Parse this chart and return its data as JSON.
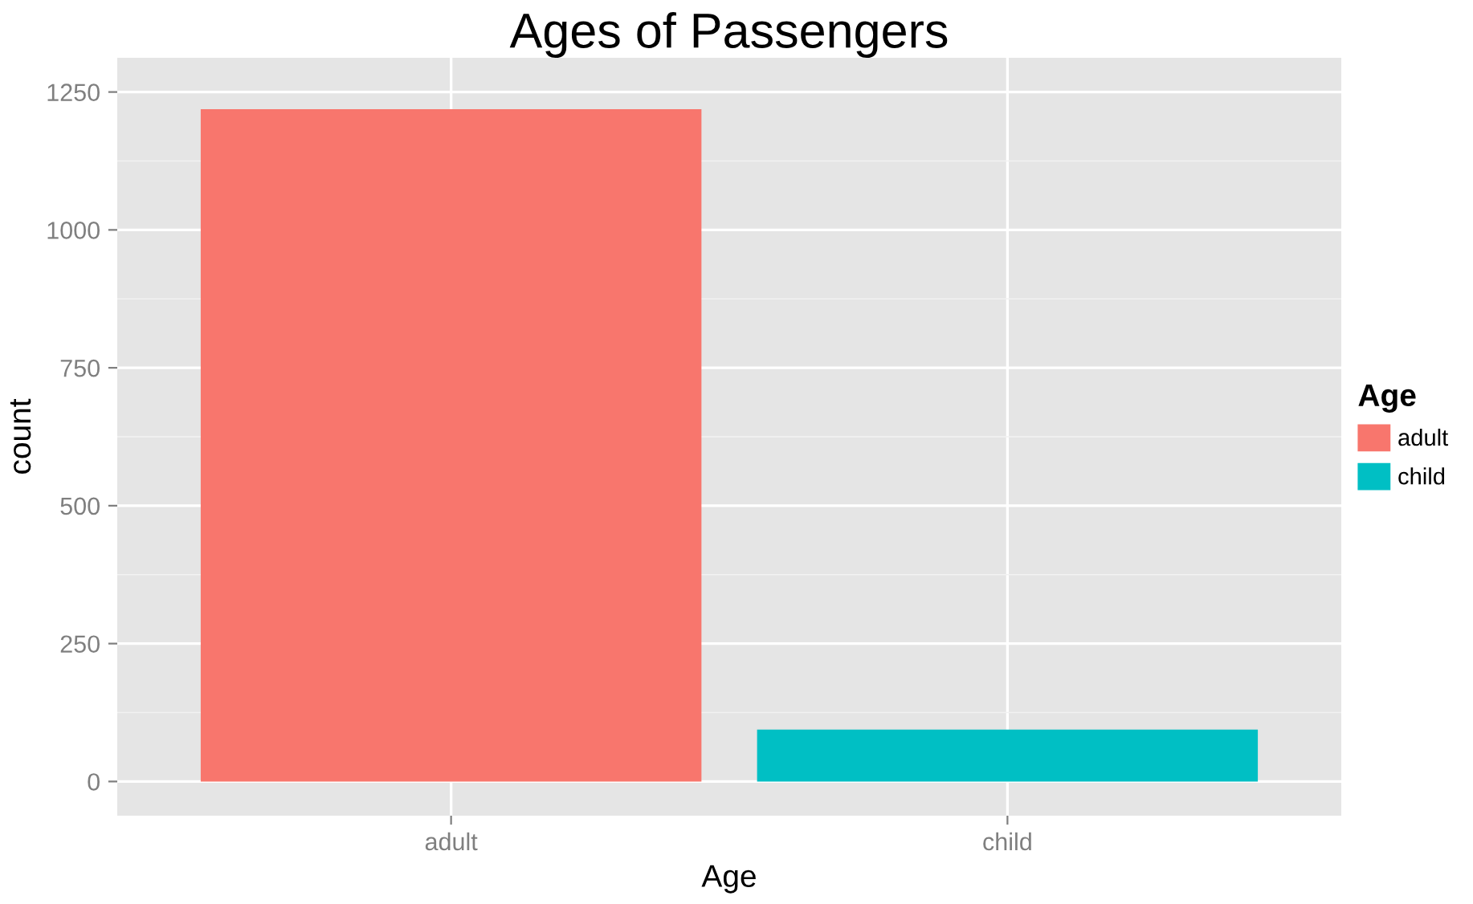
{
  "chart_data": {
    "type": "bar",
    "title": "Ages of Passengers",
    "xlabel": "Age",
    "ylabel": "count",
    "legend_title": "Age",
    "categories": [
      "adult",
      "child"
    ],
    "series": [
      {
        "name": "adult",
        "color": "#f8766d",
        "values": [
          1219,
          null
        ]
      },
      {
        "name": "child",
        "color": "#00bfc4",
        "values": [
          null,
          94
        ]
      }
    ],
    "ylim": [
      -62,
      1312
    ],
    "yticks": [
      0,
      250,
      500,
      750,
      1000,
      1250
    ],
    "grid": true,
    "legend": "right"
  }
}
